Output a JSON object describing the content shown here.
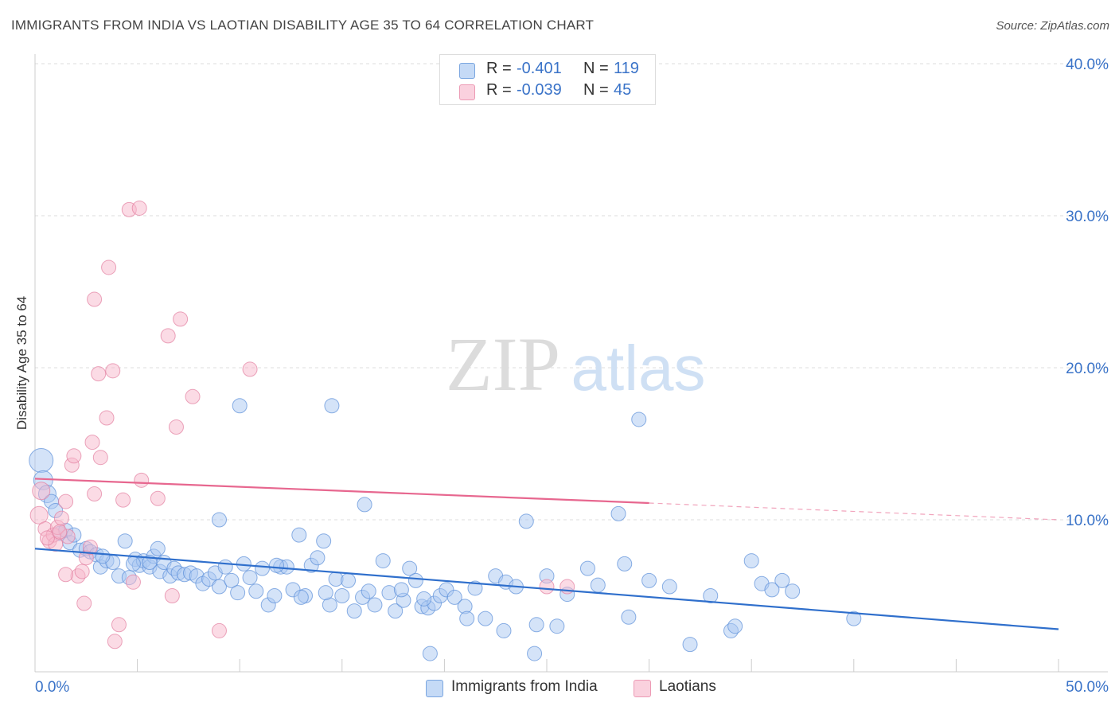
{
  "header": {
    "title": "IMMIGRANTS FROM INDIA VS LAOTIAN DISABILITY AGE 35 TO 64 CORRELATION CHART",
    "source": "Source: ZipAtlas.com"
  },
  "watermark": {
    "zip": "ZIP",
    "atlas": "atlas"
  },
  "legend": {
    "rows": [
      {
        "r_label": "R =",
        "r_value": "-0.401",
        "n_label": "N =",
        "n_value": "119",
        "color": "#a9c8f2"
      },
      {
        "r_label": "R =",
        "r_value": "-0.039",
        "n_label": "N =",
        "n_value": "45",
        "color": "#f7b8cb"
      }
    ]
  },
  "bottom_legend": [
    {
      "label": "Immigrants from India",
      "color": "#a9c8f2"
    },
    {
      "label": "Laotians",
      "color": "#f7b8cb"
    }
  ],
  "chart_data": {
    "type": "scatter",
    "xlabel": "",
    "ylabel": "Disability Age 35 to 64",
    "xlim": [
      0,
      50
    ],
    "ylim": [
      0,
      40
    ],
    "x_tick_labels": [
      "0.0%",
      "50.0%"
    ],
    "y_ticks": [
      10,
      20,
      30,
      40
    ],
    "y_tick_labels": [
      "10.0%",
      "20.0%",
      "30.0%",
      "40.0%"
    ],
    "grid": true,
    "series": [
      {
        "name": "Immigrants from India",
        "color": "#5b8ed8",
        "fill": "#a9c8f2",
        "trend": {
          "x0": 0,
          "y0": 8.1,
          "x1": 50,
          "y1": 2.8,
          "color": "#2f6fcc"
        },
        "points": [
          [
            0.3,
            13.9
          ],
          [
            0.4,
            12.6
          ],
          [
            0.6,
            11.7
          ],
          [
            0.8,
            11.2
          ],
          [
            1.0,
            10.6
          ],
          [
            1.2,
            9.1
          ],
          [
            1.5,
            9.3
          ],
          [
            1.7,
            8.5
          ],
          [
            1.9,
            9.0
          ],
          [
            2.2,
            8.0
          ],
          [
            2.5,
            8.1
          ],
          [
            2.7,
            7.9
          ],
          [
            3.0,
            7.7
          ],
          [
            3.2,
            6.9
          ],
          [
            3.5,
            7.3
          ],
          [
            3.8,
            7.2
          ],
          [
            4.1,
            6.3
          ],
          [
            4.4,
            8.6
          ],
          [
            4.6,
            6.2
          ],
          [
            4.9,
            7.4
          ],
          [
            5.1,
            7.0
          ],
          [
            5.3,
            7.3
          ],
          [
            5.6,
            6.9
          ],
          [
            5.8,
            7.6
          ],
          [
            6.1,
            6.6
          ],
          [
            6.3,
            7.2
          ],
          [
            6.6,
            6.3
          ],
          [
            6.8,
            6.8
          ],
          [
            7.0,
            6.5
          ],
          [
            7.3,
            6.4
          ],
          [
            7.6,
            6.5
          ],
          [
            7.9,
            6.3
          ],
          [
            8.2,
            5.8
          ],
          [
            8.5,
            6.1
          ],
          [
            8.8,
            6.5
          ],
          [
            9.0,
            5.6
          ],
          [
            9.3,
            6.9
          ],
          [
            9.6,
            6.0
          ],
          [
            9.9,
            5.2
          ],
          [
            10.2,
            7.1
          ],
          [
            10.5,
            6.2
          ],
          [
            10.8,
            5.3
          ],
          [
            11.1,
            6.8
          ],
          [
            11.4,
            4.4
          ],
          [
            11.7,
            5.0
          ],
          [
            12.0,
            6.9
          ],
          [
            12.3,
            6.9
          ],
          [
            12.6,
            5.4
          ],
          [
            12.9,
            9.0
          ],
          [
            13.2,
            5.0
          ],
          [
            13.5,
            7.0
          ],
          [
            13.8,
            7.5
          ],
          [
            14.1,
            8.6
          ],
          [
            14.4,
            4.4
          ],
          [
            14.7,
            6.1
          ],
          [
            15.0,
            5.0
          ],
          [
            15.3,
            6.0
          ],
          [
            15.6,
            4.0
          ],
          [
            16.0,
            4.9
          ],
          [
            16.3,
            5.3
          ],
          [
            16.6,
            4.4
          ],
          [
            17.0,
            7.3
          ],
          [
            17.3,
            5.2
          ],
          [
            17.6,
            4.0
          ],
          [
            18.0,
            4.7
          ],
          [
            18.3,
            6.8
          ],
          [
            18.6,
            6.0
          ],
          [
            18.9,
            4.3
          ],
          [
            19.2,
            4.2
          ],
          [
            19.5,
            4.5
          ],
          [
            19.8,
            5.0
          ],
          [
            20.1,
            5.4
          ],
          [
            20.5,
            4.9
          ],
          [
            21.0,
            4.3
          ],
          [
            21.5,
            5.5
          ],
          [
            22.0,
            3.5
          ],
          [
            22.5,
            6.3
          ],
          [
            23.0,
            5.9
          ],
          [
            23.5,
            5.6
          ],
          [
            24.0,
            9.9
          ],
          [
            24.5,
            3.1
          ],
          [
            25.0,
            6.3
          ],
          [
            25.5,
            3.0
          ],
          [
            26.0,
            5.1
          ],
          [
            27.0,
            6.8
          ],
          [
            27.5,
            5.7
          ],
          [
            28.5,
            10.4
          ],
          [
            28.8,
            7.1
          ],
          [
            29.0,
            3.6
          ],
          [
            30.0,
            6.0
          ],
          [
            31.0,
            5.6
          ],
          [
            32.0,
            1.8
          ],
          [
            33.0,
            5.0
          ],
          [
            34.0,
            2.7
          ],
          [
            35.0,
            7.3
          ],
          [
            35.5,
            5.8
          ],
          [
            36.0,
            5.4
          ],
          [
            36.5,
            6.0
          ],
          [
            37.0,
            5.3
          ],
          [
            40.0,
            3.5
          ],
          [
            10.0,
            17.5
          ],
          [
            14.5,
            17.5
          ],
          [
            29.5,
            16.6
          ],
          [
            16.1,
            11.0
          ],
          [
            9.0,
            10.0
          ],
          [
            6.0,
            8.1
          ],
          [
            3.3,
            7.6
          ],
          [
            5.6,
            7.2
          ],
          [
            14.2,
            5.2
          ],
          [
            13.0,
            4.9
          ],
          [
            17.9,
            5.4
          ],
          [
            19.0,
            4.8
          ],
          [
            21.1,
            3.5
          ],
          [
            22.9,
            2.7
          ],
          [
            24.4,
            1.2
          ],
          [
            34.2,
            3.0
          ],
          [
            19.3,
            1.2
          ],
          [
            11.8,
            7.0
          ],
          [
            4.8,
            7.1
          ]
        ]
      },
      {
        "name": "Laotians",
        "color": "#e27f9f",
        "fill": "#f7b8cb",
        "trend": {
          "x0": 0,
          "y0": 12.7,
          "x1": 30,
          "y1": 11.1,
          "dash_x1": 50,
          "dash_y1": 10.0,
          "color": "#e7678f"
        },
        "points": [
          [
            0.2,
            10.3
          ],
          [
            0.3,
            11.9
          ],
          [
            0.5,
            9.4
          ],
          [
            0.7,
            8.6
          ],
          [
            0.9,
            9.0
          ],
          [
            1.1,
            9.5
          ],
          [
            1.3,
            10.1
          ],
          [
            1.5,
            11.2
          ],
          [
            1.6,
            8.9
          ],
          [
            1.8,
            13.6
          ],
          [
            1.9,
            14.2
          ],
          [
            2.1,
            6.3
          ],
          [
            2.3,
            6.6
          ],
          [
            2.4,
            4.5
          ],
          [
            2.5,
            7.5
          ],
          [
            2.7,
            8.2
          ],
          [
            2.8,
            15.1
          ],
          [
            2.9,
            11.7
          ],
          [
            3.1,
            19.6
          ],
          [
            3.2,
            14.1
          ],
          [
            3.5,
            16.7
          ],
          [
            3.6,
            26.6
          ],
          [
            3.8,
            19.8
          ],
          [
            3.9,
            2.0
          ],
          [
            4.1,
            3.1
          ],
          [
            4.3,
            11.3
          ],
          [
            4.6,
            30.4
          ],
          [
            4.8,
            5.9
          ],
          [
            5.1,
            30.5
          ],
          [
            5.2,
            12.6
          ],
          [
            6.0,
            11.4
          ],
          [
            6.5,
            22.1
          ],
          [
            6.7,
            5.0
          ],
          [
            6.9,
            16.1
          ],
          [
            7.1,
            23.2
          ],
          [
            7.7,
            18.1
          ],
          [
            9.0,
            2.7
          ],
          [
            10.5,
            19.9
          ],
          [
            2.9,
            24.5
          ],
          [
            1.0,
            8.4
          ],
          [
            1.5,
            6.4
          ],
          [
            0.6,
            8.8
          ],
          [
            1.2,
            9.2
          ],
          [
            25.0,
            5.6
          ],
          [
            26.0,
            5.6
          ]
        ]
      }
    ]
  }
}
